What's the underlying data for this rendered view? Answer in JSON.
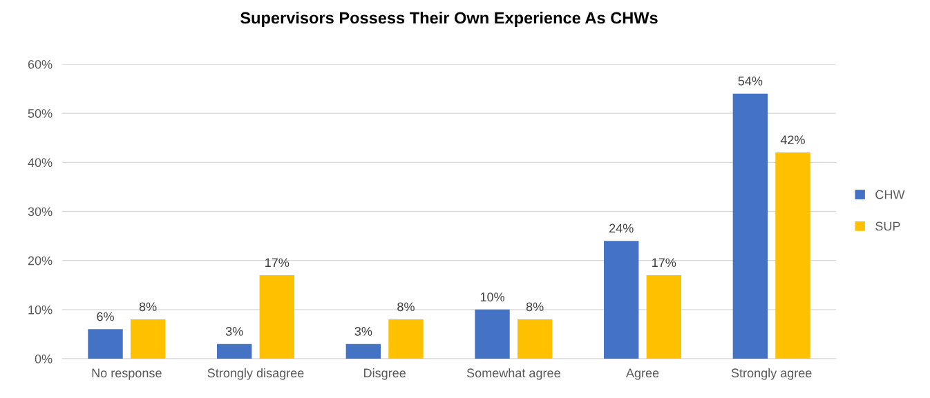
{
  "chart_data": {
    "type": "bar",
    "title": "Supervisors Possess Their Own Experience As CHWs",
    "categories": [
      "No response",
      "Strongly disagree",
      "Disgree",
      "Somewhat agree",
      "Agree",
      "Strongly agree"
    ],
    "series": [
      {
        "name": "CHW",
        "color": "#4472c4",
        "values": [
          6,
          3,
          3,
          10,
          24,
          54
        ],
        "value_labels": [
          "6%",
          "3%",
          "3%",
          "10%",
          "24%",
          "54%"
        ]
      },
      {
        "name": "SUP",
        "color": "#ffc000",
        "values": [
          8,
          17,
          8,
          8,
          17,
          42
        ],
        "value_labels": [
          "8%",
          "17%",
          "8%",
          "8%",
          "17%",
          "42%"
        ]
      }
    ],
    "ylim": [
      0,
      60
    ],
    "yticks": [
      {
        "value": 0,
        "label": "0%"
      },
      {
        "value": 10,
        "label": "10%"
      },
      {
        "value": 20,
        "label": "20%"
      },
      {
        "value": 30,
        "label": "30%"
      },
      {
        "value": 40,
        "label": "40%"
      },
      {
        "value": 50,
        "label": "50%"
      },
      {
        "value": 60,
        "label": "60%"
      }
    ],
    "grid": "y",
    "legend": "right"
  }
}
